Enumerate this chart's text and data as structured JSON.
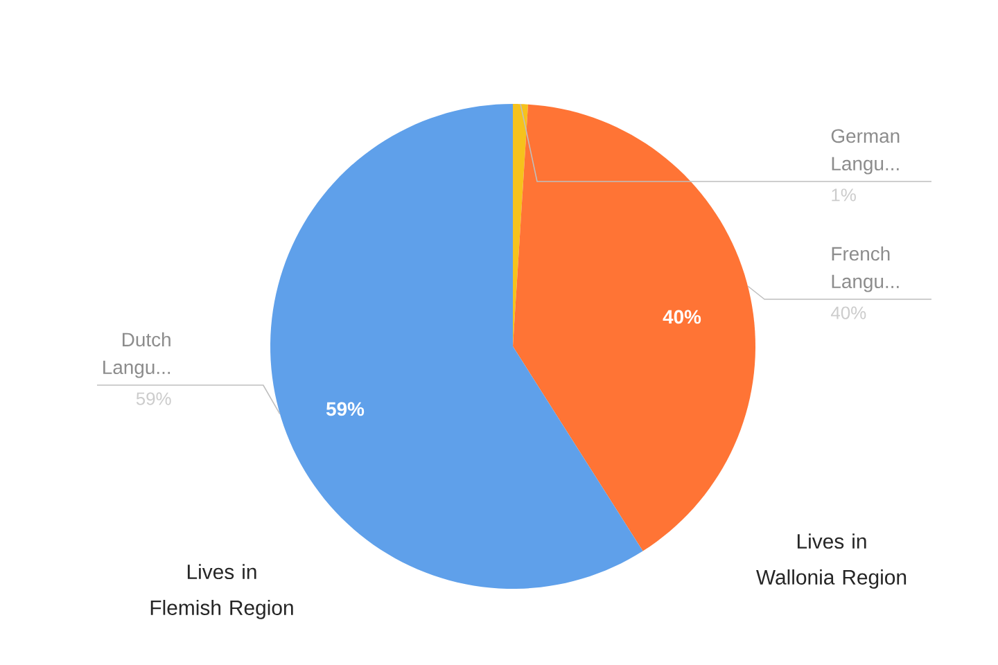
{
  "chart_data": {
    "type": "pie",
    "categories": [
      "German Langu...",
      "French Langu...",
      "Dutch Langu..."
    ],
    "values": [
      1,
      40,
      59
    ],
    "colors": [
      "#f6c21c",
      "#ff7435",
      "#5fa0ea"
    ],
    "value_labels": [
      "1%",
      "40%",
      "59%"
    ],
    "annotations": [
      "Lives in Wallonia Region",
      "Lives in Flemish Region"
    ]
  }
}
